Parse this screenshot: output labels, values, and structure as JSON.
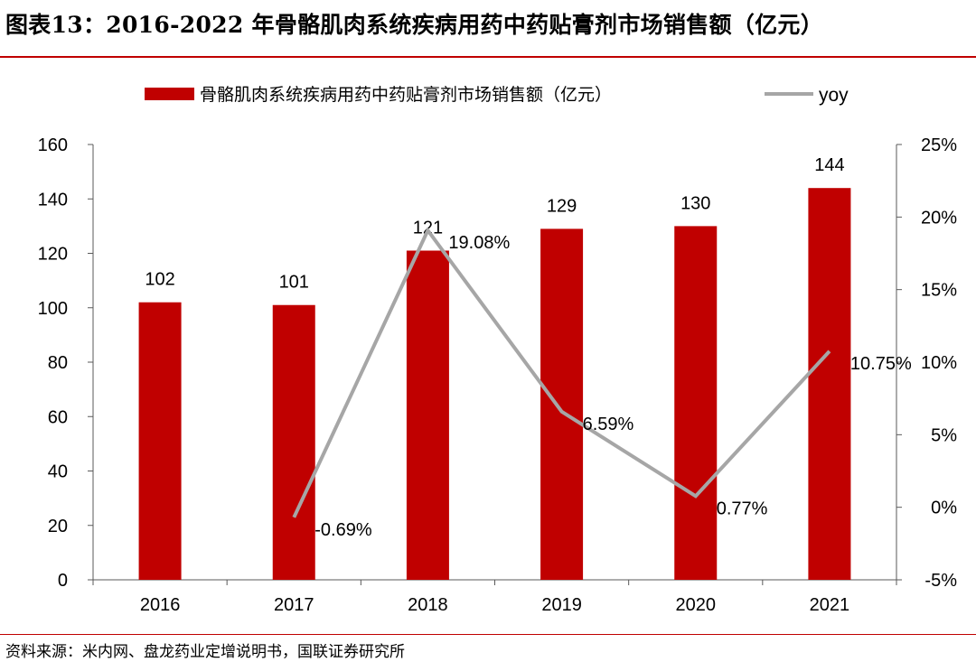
{
  "figure": {
    "title": "图表13：2016-2022 年骨骼肌肉系统疾病用药中药贴膏剂市场销售额（亿元）",
    "source": "资料来源：米内网、盘龙药业定增说明书，国联证券研究所"
  },
  "colors": {
    "bar": "#c00000",
    "line": "#a6a6a6",
    "rule": "#c00000",
    "axis": "#595959"
  },
  "chart_data": {
    "type": "bar",
    "categories": [
      "2016",
      "2017",
      "2018",
      "2019",
      "2020",
      "2021"
    ],
    "series": [
      {
        "name": "骨骼肌肉系统疾病用药中药贴膏剂市场销售额（亿元）",
        "type": "bar",
        "axis": "left",
        "values": [
          102,
          101,
          121,
          129,
          130,
          144
        ],
        "labels": [
          "102",
          "101",
          "121",
          "129",
          "130",
          "144"
        ]
      },
      {
        "name": "yoy",
        "type": "line",
        "axis": "right",
        "values": [
          null,
          -0.69,
          19.08,
          6.59,
          0.77,
          10.75
        ],
        "labels": [
          "",
          "-0.69%",
          "19.08%",
          "6.59%",
          "0.77%",
          "10.75%"
        ]
      }
    ],
    "left_axis": {
      "min": 0,
      "max": 160,
      "ticks": [
        "0",
        "20",
        "40",
        "60",
        "80",
        "100",
        "120",
        "140",
        "160"
      ]
    },
    "right_axis": {
      "min": -5,
      "max": 25,
      "ticks": [
        "-5%",
        "0%",
        "5%",
        "10%",
        "15%",
        "20%",
        "25%"
      ]
    },
    "legend_position": "top",
    "grid": false
  }
}
